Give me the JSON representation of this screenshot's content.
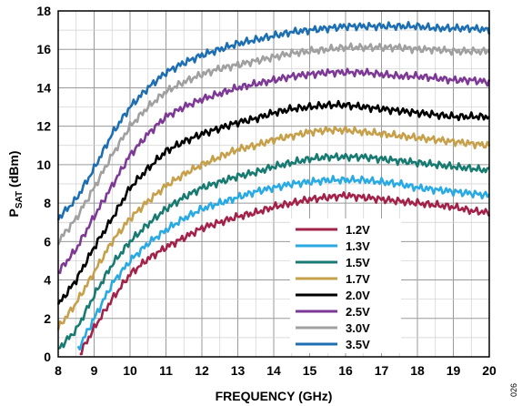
{
  "chart_data": {
    "type": "line",
    "title": "",
    "xlabel": "FREQUENCY (GHz)",
    "ylabel_main": "P",
    "ylabel_sub": "SAT",
    "ylabel_unit": " (dBm)",
    "xlim": [
      8,
      20
    ],
    "ylim": [
      0,
      18
    ],
    "x_ticks": [
      "8",
      "9",
      "10",
      "11",
      "12",
      "13",
      "14",
      "15",
      "16",
      "17",
      "18",
      "19",
      "20"
    ],
    "y_ticks": [
      "0",
      "2",
      "4",
      "6",
      "8",
      "10",
      "12",
      "14",
      "16",
      "18"
    ],
    "grid": true,
    "legend_position": "lower-right",
    "x": [
      8,
      8.5,
      9,
      9.5,
      10,
      10.5,
      11,
      11.5,
      12,
      12.5,
      13,
      13.5,
      14,
      14.5,
      15,
      15.5,
      16,
      16.5,
      17,
      17.5,
      18,
      18.5,
      19,
      19.5,
      20
    ],
    "series": [
      {
        "name": "1.2V",
        "color": "#a3224a",
        "values": [
          null,
          -0.2,
          1.5,
          3.0,
          4.3,
          5.1,
          5.7,
          6.2,
          6.7,
          7.0,
          7.3,
          7.5,
          7.8,
          8.0,
          8.2,
          8.3,
          8.4,
          8.3,
          8.2,
          8.1,
          8.0,
          7.9,
          7.8,
          7.6,
          7.5
        ]
      },
      {
        "name": "1.3V",
        "color": "#2aaae2",
        "values": [
          null,
          0.2,
          2.0,
          3.8,
          5.0,
          5.9,
          6.6,
          7.2,
          7.7,
          8.0,
          8.3,
          8.6,
          8.8,
          9.0,
          9.1,
          9.2,
          9.2,
          9.2,
          9.1,
          9.0,
          8.8,
          8.7,
          8.6,
          8.5,
          8.4
        ]
      },
      {
        "name": "1.5V",
        "color": "#187b72",
        "values": [
          0.4,
          1.4,
          3.2,
          4.8,
          6.0,
          6.9,
          7.7,
          8.3,
          8.8,
          9.1,
          9.4,
          9.6,
          9.9,
          10.1,
          10.3,
          10.4,
          10.4,
          10.4,
          10.3,
          10.2,
          10.1,
          10.0,
          9.9,
          9.8,
          9.7
        ]
      },
      {
        "name": "1.7V",
        "color": "#c6a04a",
        "values": [
          1.5,
          2.8,
          4.4,
          6.0,
          7.2,
          8.1,
          8.9,
          9.5,
          10.0,
          10.4,
          10.8,
          11.0,
          11.3,
          11.5,
          11.7,
          11.8,
          11.8,
          11.7,
          11.6,
          11.5,
          11.4,
          11.3,
          11.2,
          11.1,
          11.0
        ]
      },
      {
        "name": "2.0V",
        "color": "#000000",
        "values": [
          2.7,
          4.0,
          5.7,
          7.2,
          8.8,
          9.8,
          10.7,
          11.2,
          11.6,
          11.9,
          12.2,
          12.4,
          12.7,
          12.9,
          13.0,
          13.1,
          13.1,
          13.0,
          12.9,
          12.8,
          12.7,
          12.6,
          12.5,
          12.5,
          12.5
        ]
      },
      {
        "name": "2.5V",
        "color": "#7d3995",
        "values": [
          4.4,
          5.6,
          7.3,
          8.9,
          10.5,
          11.6,
          12.5,
          13.0,
          13.4,
          13.7,
          14.0,
          14.2,
          14.4,
          14.6,
          14.7,
          14.8,
          14.8,
          14.8,
          14.7,
          14.6,
          14.6,
          14.5,
          14.4,
          14.4,
          14.3
        ]
      },
      {
        "name": "3.0V",
        "color": "#a0a0a0",
        "values": [
          6.0,
          7.2,
          8.8,
          10.5,
          12.0,
          13.0,
          13.8,
          14.3,
          14.7,
          15.0,
          15.2,
          15.4,
          15.6,
          15.8,
          15.9,
          16.0,
          16.1,
          16.1,
          16.1,
          16.1,
          16.0,
          16.0,
          15.9,
          15.9,
          15.9
        ]
      },
      {
        "name": "3.5V",
        "color": "#1d6fb2",
        "values": [
          7.2,
          8.2,
          9.8,
          11.6,
          13.0,
          14.0,
          14.8,
          15.3,
          15.7,
          16.0,
          16.3,
          16.5,
          16.7,
          16.9,
          17.0,
          17.1,
          17.2,
          17.2,
          17.2,
          17.2,
          17.2,
          17.1,
          17.1,
          17.1,
          17.0
        ]
      }
    ],
    "corner_id": "026"
  }
}
